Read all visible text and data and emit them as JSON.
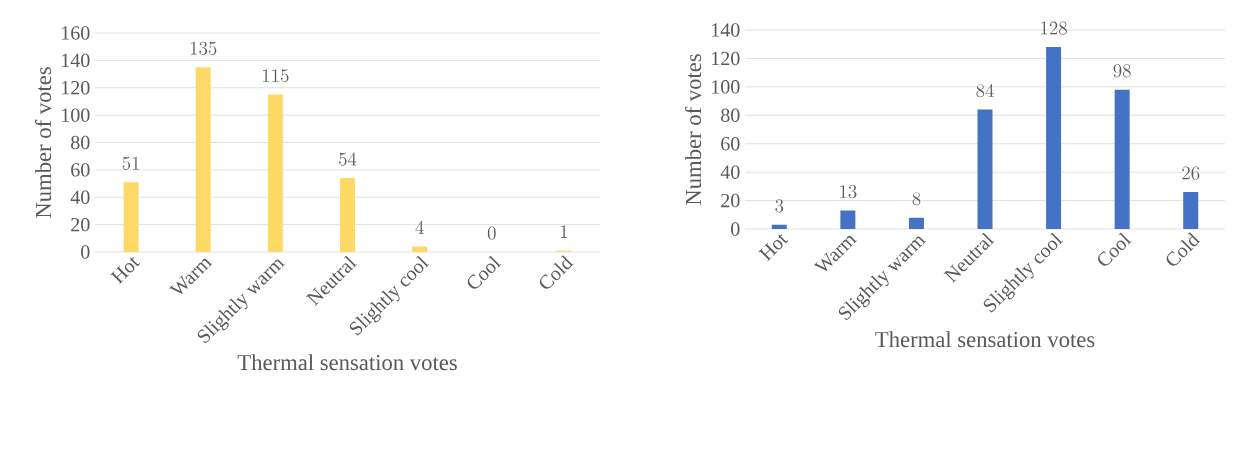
{
  "chart_data": [
    {
      "type": "bar",
      "categories": [
        "Hot",
        "Warm",
        "Slightly warm",
        "Neutral",
        "Slightly cool",
        "Cool",
        "Cold"
      ],
      "values": [
        51,
        135,
        115,
        54,
        4,
        0,
        1
      ],
      "color": "#ffd966",
      "ylim": [
        0,
        160
      ],
      "yticks": [
        0,
        20,
        40,
        60,
        80,
        100,
        120,
        140,
        160
      ],
      "grid": "y",
      "data_labels": true,
      "xlabel": "Thermal sensation votes",
      "ylabel": "Number of votes"
    },
    {
      "type": "bar",
      "categories": [
        "Hot",
        "Warm",
        "Slightly warm",
        "Neutral",
        "Slightly cool",
        "Cool",
        "Cold"
      ],
      "values": [
        3,
        13,
        8,
        84,
        128,
        98,
        26
      ],
      "color": "#4472c4",
      "ylim": [
        0,
        140
      ],
      "yticks": [
        0,
        20,
        40,
        60,
        80,
        100,
        120,
        140
      ],
      "grid": "y",
      "data_labels": true,
      "xlabel": "Thermal sensation votes",
      "ylabel": "Number of votes"
    }
  ]
}
